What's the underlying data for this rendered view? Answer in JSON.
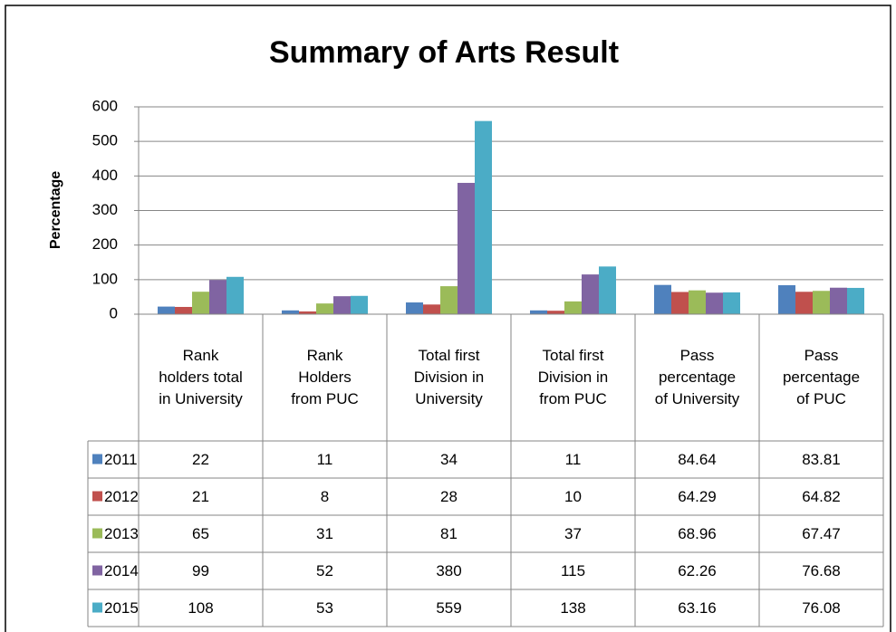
{
  "chart_data": {
    "type": "bar",
    "title": "Summary of Arts Result",
    "y_label": "Percentage",
    "categories": [
      "Rank holders total in University",
      "Rank Holders from PUC",
      "Total first Division in University",
      "Total first Division in from PUC",
      "Pass percentage of University",
      "Pass percentage of PUC"
    ],
    "series": [
      {
        "name": "2011",
        "color": "#4f81bd",
        "values": [
          22,
          11,
          34,
          11,
          84.64,
          83.81
        ]
      },
      {
        "name": "2012",
        "color": "#c0504d",
        "values": [
          21,
          8,
          28,
          10,
          64.29,
          64.82
        ]
      },
      {
        "name": "2013",
        "color": "#9bbb59",
        "values": [
          65,
          31,
          81,
          37,
          68.96,
          67.47
        ]
      },
      {
        "name": "2014",
        "color": "#8064a2",
        "values": [
          99,
          52,
          380,
          115,
          62.26,
          76.68
        ]
      },
      {
        "name": "2015",
        "color": "#4bacc6",
        "values": [
          108,
          53,
          559,
          138,
          63.16,
          76.08
        ]
      }
    ],
    "ylim": [
      0,
      600
    ],
    "yticks": [
      0,
      100,
      200,
      300,
      400,
      500,
      600
    ],
    "grid": true
  }
}
